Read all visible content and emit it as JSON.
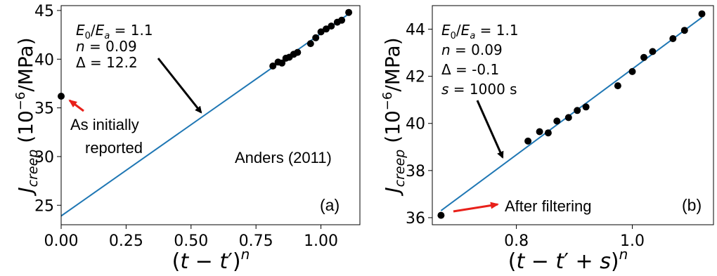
{
  "chart_data": [
    {
      "panel_label": "(a)",
      "type": "scatter",
      "xlabel": "(t − t′)^n",
      "ylabel": "J_creep (10^−6/MPa)",
      "xlim": [
        0.0,
        1.15
      ],
      "ylim": [
        23,
        45.5
      ],
      "xticks": [
        0.0,
        0.25,
        0.5,
        0.75,
        1.0
      ],
      "xtick_labels": [
        "0.00",
        "0.25",
        "0.50",
        "0.75",
        "1.00"
      ],
      "yticks": [
        25,
        30,
        35,
        40,
        45
      ],
      "ytick_labels": [
        "25",
        "30",
        "35",
        "40",
        "45"
      ],
      "grid": false,
      "series": [
        {
          "kind": "points",
          "color": "#000000",
          "x": [
            0.0,
            0.815,
            0.835,
            0.85,
            0.865,
            0.878,
            0.895,
            0.91,
            0.96,
            0.98,
            1.0,
            1.02,
            1.04,
            1.063,
            1.08,
            1.107
          ],
          "y": [
            36.2,
            39.3,
            39.7,
            39.6,
            40.1,
            40.2,
            40.5,
            40.7,
            41.6,
            42.2,
            42.8,
            43.1,
            43.4,
            43.8,
            44.0,
            44.8
          ]
        },
        {
          "kind": "line",
          "color": "#1f77b4",
          "x": [
            0.0,
            1.11
          ],
          "y": [
            23.9,
            44.7
          ]
        }
      ],
      "params_text": [
        "E₀/Eₐ = 1.1",
        "n = 0.09",
        "Δ = 12.2"
      ],
      "annotations": [
        "As initially",
        "reported",
        "Anders (2011)"
      ]
    },
    {
      "panel_label": "(b)",
      "type": "scatter",
      "xlabel": "(t − t′ + s)^n",
      "ylabel": "J_creep (10^−6/MPa)",
      "xlim": [
        0.655,
        1.14
      ],
      "ylim": [
        35.7,
        45.0
      ],
      "xticks": [
        0.8,
        1.0
      ],
      "xtick_labels": [
        "0.8",
        "1.0"
      ],
      "yticks": [
        36,
        38,
        40,
        42,
        44
      ],
      "ytick_labels": [
        "36",
        "38",
        "40",
        "42",
        "44"
      ],
      "grid": false,
      "series": [
        {
          "kind": "points",
          "color": "#000000",
          "x": [
            0.67,
            0.82,
            0.84,
            0.855,
            0.87,
            0.89,
            0.905,
            0.92,
            0.975,
            1.0,
            1.02,
            1.035,
            1.07,
            1.09,
            1.12
          ],
          "y": [
            36.1,
            39.25,
            39.65,
            39.6,
            40.1,
            40.25,
            40.55,
            40.7,
            41.6,
            42.2,
            42.8,
            43.05,
            43.6,
            43.95,
            44.65
          ]
        },
        {
          "kind": "line",
          "color": "#1f77b4",
          "x": [
            0.67,
            1.12
          ],
          "y": [
            36.3,
            44.5
          ]
        }
      ],
      "params_text": [
        "E₀/Eₐ = 1.1",
        "n = 0.09",
        "Δ = -0.1",
        "s = 1000 s"
      ],
      "annotations": [
        "After filtering"
      ]
    }
  ]
}
